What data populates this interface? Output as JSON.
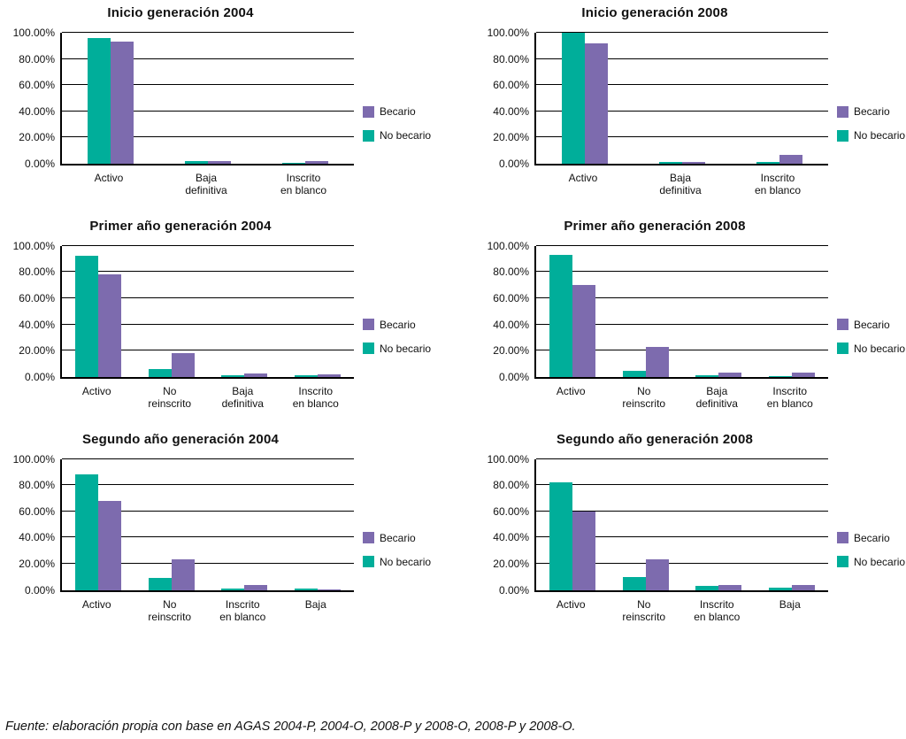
{
  "footer": {
    "source": "Fuente: elaboración propia con base en AGAS 2004-P, 2004-O, 2008-P y 2008-O, 2008-P y 2008-O."
  },
  "colors": {
    "becario": "#7d6bae",
    "no_becario": "#00ae9a",
    "axis": "#000000"
  },
  "y_axis": {
    "ticks": [
      "100.00%",
      "80.00%",
      "60.00%",
      "40.00%",
      "20.00%",
      "0.00%"
    ],
    "min": 0,
    "max": 100,
    "step": 20
  },
  "legend": [
    {
      "label": "Becario",
      "color_key": "becario"
    },
    {
      "label": "No becario",
      "color_key": "no_becario"
    }
  ],
  "chart_data": [
    {
      "type": "bar",
      "title": "Inicio generación 2004",
      "categories": [
        "Activo",
        "Baja\ndefinitiva",
        "Inscrito\nen blanco"
      ],
      "series": [
        {
          "name": "No becario",
          "color_key": "no_becario",
          "values": [
            96,
            2,
            1
          ]
        },
        {
          "name": "Becario",
          "color_key": "becario",
          "values": [
            93.5,
            2,
            2
          ]
        }
      ],
      "ylim": [
        0,
        100
      ],
      "grid": true,
      "legend_position": "right"
    },
    {
      "type": "bar",
      "title": "Inicio generación 2008",
      "categories": [
        "Activo",
        "Baja\ndefinitiva",
        "Inscrito\nen blanco"
      ],
      "series": [
        {
          "name": "No becario",
          "color_key": "no_becario",
          "values": [
            100,
            1.5,
            1.5
          ]
        },
        {
          "name": "Becario",
          "color_key": "becario",
          "values": [
            92,
            1.5,
            6.5
          ]
        }
      ],
      "ylim": [
        0,
        100
      ],
      "grid": true,
      "legend_position": "right"
    },
    {
      "type": "bar",
      "title": "Primer año generación 2004",
      "categories": [
        "Activo",
        "No\nreinscrito",
        "Baja\ndefinitiva",
        "Inscrito\nen blanco"
      ],
      "series": [
        {
          "name": "No becario",
          "color_key": "no_becario",
          "values": [
            92.5,
            6,
            1.5,
            1
          ]
        },
        {
          "name": "Becario",
          "color_key": "becario",
          "values": [
            78,
            18,
            2.5,
            2
          ]
        }
      ],
      "ylim": [
        0,
        100
      ],
      "grid": true,
      "legend_position": "right"
    },
    {
      "type": "bar",
      "title": "Primer año generación 2008",
      "categories": [
        "Activo",
        "No\nreinscrito",
        "Baja\ndefinitiva",
        "Inscrito\nen blanco"
      ],
      "series": [
        {
          "name": "No becario",
          "color_key": "no_becario",
          "values": [
            93,
            4.5,
            1,
            0.8
          ]
        },
        {
          "name": "Becario",
          "color_key": "becario",
          "values": [
            70,
            23,
            3.5,
            3.5
          ]
        }
      ],
      "ylim": [
        0,
        100
      ],
      "grid": true,
      "legend_position": "right"
    },
    {
      "type": "bar",
      "title": "Segundo año generación 2004",
      "categories": [
        "Activo",
        "No\nreinscrito",
        "Inscrito\nen blanco",
        "Baja"
      ],
      "series": [
        {
          "name": "No becario",
          "color_key": "no_becario",
          "values": [
            88,
            9.5,
            1,
            1
          ]
        },
        {
          "name": "Becario",
          "color_key": "becario",
          "values": [
            68,
            23.5,
            4,
            0.5
          ]
        }
      ],
      "ylim": [
        0,
        100
      ],
      "grid": true,
      "legend_position": "right"
    },
    {
      "type": "bar",
      "title": "Segundo año generación 2008",
      "categories": [
        "Activo",
        "No\nreinscrito",
        "Inscrito\nen blanco",
        "Baja"
      ],
      "series": [
        {
          "name": "No becario",
          "color_key": "no_becario",
          "values": [
            82,
            10,
            3,
            1.5
          ]
        },
        {
          "name": "Becario",
          "color_key": "becario",
          "values": [
            60,
            23.5,
            4,
            4
          ]
        }
      ],
      "ylim": [
        0,
        100
      ],
      "grid": true,
      "legend_position": "right"
    }
  ]
}
